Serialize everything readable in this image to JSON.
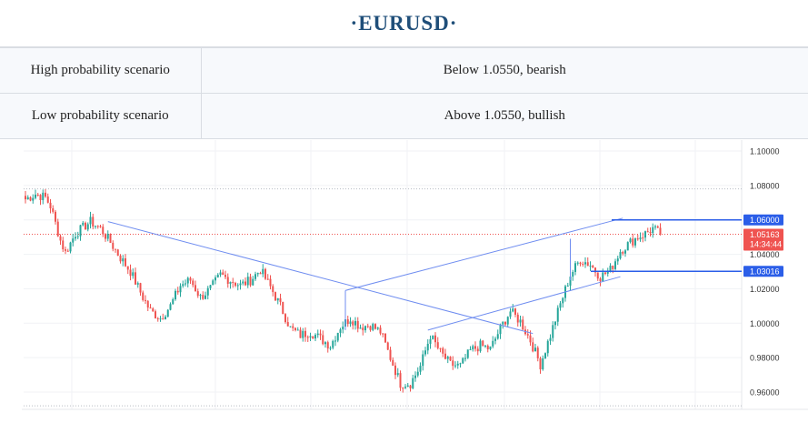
{
  "title": "·EURUSD·",
  "scenarios": [
    {
      "label": "High  probability  scenario",
      "value": "Below  1.0550,  bearish"
    },
    {
      "label": "Low  probability  scenario",
      "value": "Above  1.0550,  bullish"
    }
  ],
  "chart_data": {
    "type": "candlestick",
    "symbol": "EURUSD",
    "ylim": [
      0.955,
      1.102
    ],
    "y_ticks": [
      {
        "value": 1.1,
        "label": "1.10000"
      },
      {
        "value": 1.08,
        "label": "1.08000"
      },
      {
        "value": 1.06,
        "label": "1.06000"
      },
      {
        "value": 1.04,
        "label": "1.04000"
      },
      {
        "value": 1.02,
        "label": "1.02000"
      },
      {
        "value": 1.0,
        "label": "1.00000"
      },
      {
        "value": 0.98,
        "label": "0.98000"
      },
      {
        "value": 0.96,
        "label": "0.96000"
      }
    ],
    "grid": true,
    "current_price": {
      "value": 1.05163,
      "label": "1.05163",
      "countdown": "14:34:44",
      "color": "#ef5350"
    },
    "levels": [
      {
        "value": 1.06,
        "label": "1.06000",
        "color": "#2b5ee8"
      },
      {
        "value": 1.03016,
        "label": "1.03016",
        "color": "#2b5ee8"
      }
    ],
    "dotted_levels": [
      1.078,
      0.952
    ],
    "colors": {
      "up": "#26a69a",
      "down": "#ef5350",
      "trendline": "#6f8df0"
    },
    "close_anchors": [
      [
        0,
        1.072
      ],
      [
        4,
        1.075
      ],
      [
        8,
        1.073
      ],
      [
        10,
        1.068
      ],
      [
        14,
        1.048
      ],
      [
        16,
        1.041
      ],
      [
        20,
        1.052
      ],
      [
        26,
        1.059
      ],
      [
        30,
        1.055
      ],
      [
        34,
        1.047
      ],
      [
        38,
        1.038
      ],
      [
        42,
        1.03
      ],
      [
        44,
        1.024
      ],
      [
        47,
        1.015
      ],
      [
        50,
        1.007
      ],
      [
        54,
        1.003
      ],
      [
        58,
        1.01
      ],
      [
        62,
        1.022
      ],
      [
        66,
        1.025
      ],
      [
        70,
        1.015
      ],
      [
        74,
        1.02
      ],
      [
        78,
        1.028
      ],
      [
        82,
        1.025
      ],
      [
        86,
        1.022
      ],
      [
        90,
        1.025
      ],
      [
        94,
        1.031
      ],
      [
        98,
        1.021
      ],
      [
        102,
        1.01
      ],
      [
        106,
        0.997
      ],
      [
        110,
        0.993
      ],
      [
        114,
        0.995
      ],
      [
        118,
        0.991
      ],
      [
        122,
        0.987
      ],
      [
        126,
        0.998
      ],
      [
        130,
        1.003
      ],
      [
        134,
        0.998
      ],
      [
        138,
        0.999
      ],
      [
        142,
        0.995
      ],
      [
        146,
        0.98
      ],
      [
        150,
        0.965
      ],
      [
        154,
        0.965
      ],
      [
        158,
        0.975
      ],
      [
        162,
        0.993
      ],
      [
        166,
        0.983
      ],
      [
        170,
        0.976
      ],
      [
        174,
        0.975
      ],
      [
        178,
        0.984
      ],
      [
        182,
        0.987
      ],
      [
        186,
        0.985
      ],
      [
        190,
        0.997
      ],
      [
        194,
        1.007
      ],
      [
        198,
        1.001
      ],
      [
        202,
        0.99
      ],
      [
        206,
        0.976
      ],
      [
        210,
        0.993
      ],
      [
        214,
        1.011
      ],
      [
        218,
        1.028
      ],
      [
        222,
        1.037
      ],
      [
        226,
        1.034
      ],
      [
        230,
        1.027
      ],
      [
        234,
        1.031
      ],
      [
        238,
        1.042
      ],
      [
        242,
        1.047
      ],
      [
        245,
        1.05
      ],
      [
        248,
        1.052
      ],
      [
        251,
        1.055
      ],
      [
        254,
        1.05163
      ]
    ],
    "trendlines": [
      {
        "from": [
          33,
          1.059
        ],
        "to": [
          203,
          0.994
        ]
      },
      {
        "from": [
          128,
          1.019
        ],
        "to": [
          239,
          1.061
        ]
      },
      {
        "from": [
          161,
          0.996
        ],
        "to": [
          238,
          1.027
        ]
      },
      {
        "from": [
          128,
          1.019
        ],
        "to": [
          128,
          0.996
        ]
      },
      {
        "from": [
          218,
          1.049
        ],
        "to": [
          218,
          1.025
        ]
      }
    ],
    "x_last_index": 254
  }
}
